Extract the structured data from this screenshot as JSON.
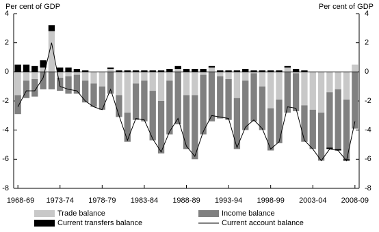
{
  "chart_data": {
    "type": "bar",
    "stacked": true,
    "y_label": "Per cent of GDP",
    "y2_label": "Per cent of GDP",
    "categories": [
      "1968-69",
      null,
      null,
      null,
      null,
      "1973-74",
      null,
      null,
      null,
      null,
      "1978-79",
      null,
      null,
      null,
      null,
      "1983-84",
      null,
      null,
      null,
      null,
      "1988-89",
      null,
      null,
      null,
      null,
      "1993-94",
      null,
      null,
      null,
      null,
      "1998-99",
      null,
      null,
      null,
      null,
      "2003-04",
      null,
      null,
      null,
      null,
      "2008-09"
    ],
    "series": [
      {
        "name": "Trade balance",
        "type": "bar",
        "color": "#c8c8c8",
        "values": [
          -1.6,
          -0.6,
          -0.5,
          0.3,
          2.8,
          -0.4,
          -0.3,
          -0.2,
          -0.6,
          -0.8,
          -1.0,
          0.2,
          -1.6,
          -2.8,
          -0.8,
          -0.6,
          -1.3,
          -2.0,
          -0.6,
          0.2,
          -1.6,
          -1.6,
          -0.2,
          0.3,
          -0.3,
          -0.5,
          -1.8,
          -0.6,
          -0.1,
          -1.0,
          -2.5,
          -1.9,
          0.3,
          -0.1,
          -2.3,
          -2.6,
          -2.8,
          -1.4,
          -1.2,
          -1.9,
          0.5
        ]
      },
      {
        "name": "Income balance",
        "type": "bar",
        "color": "#808080",
        "values": [
          -1.3,
          -1.2,
          -1.2,
          -1.2,
          -1.2,
          -0.9,
          -1.2,
          -1.3,
          -1.5,
          -1.6,
          -1.6,
          -1.5,
          -1.5,
          -2.0,
          -2.5,
          -2.8,
          -3.4,
          -3.6,
          -3.7,
          -3.6,
          -3.7,
          -4.4,
          -4.1,
          -3.4,
          -2.9,
          -2.8,
          -3.5,
          -3.4,
          -3.3,
          -3.0,
          -2.9,
          -3.0,
          -2.8,
          -2.6,
          -2.5,
          -2.7,
          -3.3,
          -3.8,
          -4.1,
          -4.1,
          -3.9
        ]
      },
      {
        "name": "Current transfers balance",
        "type": "bar",
        "color": "#000000",
        "values": [
          0.5,
          0.5,
          0.4,
          0.5,
          0.4,
          0.3,
          0.3,
          0.2,
          0.1,
          0,
          0,
          0.1,
          0.1,
          0.1,
          0.1,
          0.1,
          0.1,
          0.1,
          0.2,
          0.2,
          0.2,
          0.2,
          0.2,
          0.1,
          0.1,
          0.1,
          0.1,
          0.2,
          0.1,
          0.1,
          0.1,
          0.1,
          0.1,
          0.2,
          0.1,
          0,
          0,
          -0.1,
          -0.1,
          -0.1,
          0
        ]
      },
      {
        "name": "Current account balance",
        "type": "line",
        "color": "#000000",
        "values": [
          -2.4,
          -1.3,
          -1.3,
          -0.4,
          2.0,
          -1.0,
          -1.2,
          -1.3,
          -2.0,
          -2.4,
          -2.6,
          -1.2,
          -3.0,
          -4.7,
          -3.2,
          -3.3,
          -4.6,
          -5.5,
          -4.1,
          -3.2,
          -5.1,
          -5.8,
          -4.1,
          -3.0,
          -3.1,
          -3.2,
          -5.2,
          -3.8,
          -3.3,
          -3.9,
          -5.3,
          -4.8,
          -2.4,
          -2.5,
          -4.7,
          -5.3,
          -6.1,
          -5.3,
          -5.4,
          -6.1,
          -3.4
        ]
      }
    ],
    "ylim": [
      -8,
      4
    ],
    "yticks": [
      -8,
      -6,
      -4,
      -2,
      0,
      2,
      4
    ],
    "y2lim": [
      -8,
      4
    ],
    "y2ticks": [
      -8,
      -6,
      -4,
      -2,
      0,
      2,
      4
    ]
  }
}
